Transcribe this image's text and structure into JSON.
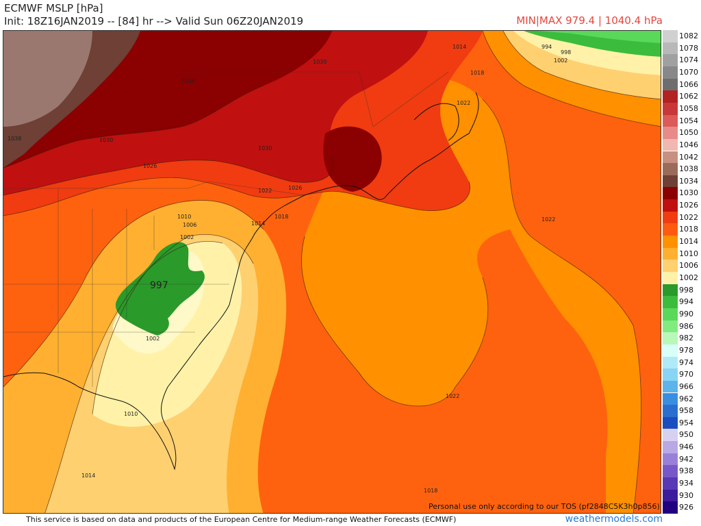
{
  "header": {
    "title_line1": "ECMWF MSLP [hPa]",
    "title_line2": "Init: 18Z16JAN2019 -- [84] hr --> Valid Sun 06Z20JAN2019",
    "minmax": "MIN|MAX 979.4 | 1040.4 hPa"
  },
  "map": {
    "low_center_label": "997",
    "contour_labels": [
      "1014",
      "994",
      "998",
      "1002",
      "1030",
      "1018",
      "1022",
      "1034",
      "1030",
      "1026",
      "1038",
      "1030",
      "1022",
      "1026",
      "1010",
      "1014",
      "1018",
      "1006",
      "1002",
      "997",
      "1002",
      "1022",
      "1022",
      "1010",
      "1014",
      "1018"
    ]
  },
  "legend": {
    "levels": [
      "1082",
      "1078",
      "1074",
      "1070",
      "1066",
      "1062",
      "1058",
      "1054",
      "1050",
      "1046",
      "1042",
      "1038",
      "1034",
      "1030",
      "1026",
      "1022",
      "1018",
      "1014",
      "1010",
      "1006",
      "1002",
      "998",
      "994",
      "990",
      "986",
      "982",
      "978",
      "974",
      "970",
      "966",
      "962",
      "958",
      "954",
      "950",
      "946",
      "942",
      "938",
      "934",
      "930",
      "926"
    ],
    "colors": [
      "#d0d0d0",
      "#b8b8b8",
      "#a0a0a0",
      "#888888",
      "#6e6e6e",
      "#b22222",
      "#c83838",
      "#dc5a5a",
      "#e88a8a",
      "#f0b8b0",
      "#c89080",
      "#9a6a5a",
      "#6e4036",
      "#8b0000",
      "#c01010",
      "#f03c10",
      "#ff5a10",
      "#ff9000",
      "#ffb030",
      "#ffd070",
      "#fff2a8",
      "#2a9a2a",
      "#3cbc3c",
      "#5ad85a",
      "#80ec80",
      "#b8f8b8",
      "#d8fff8",
      "#b0eaf8",
      "#88d4f4",
      "#5cb4ea",
      "#3a8ee0",
      "#2a6ed0",
      "#1a4ec0",
      "#d8d0f0",
      "#b8a8e4",
      "#9880d8",
      "#7858c8",
      "#5838b4",
      "#3c1c9c",
      "#200080"
    ]
  },
  "notice": {
    "tos": "Personal use only according to our TOS (pf2848C5K3h0p856)",
    "footer": "This service is based on data and products of the European Centre for Medium-range Weather Forecasts (ECMWF)",
    "brand": "weathermodels.com"
  }
}
